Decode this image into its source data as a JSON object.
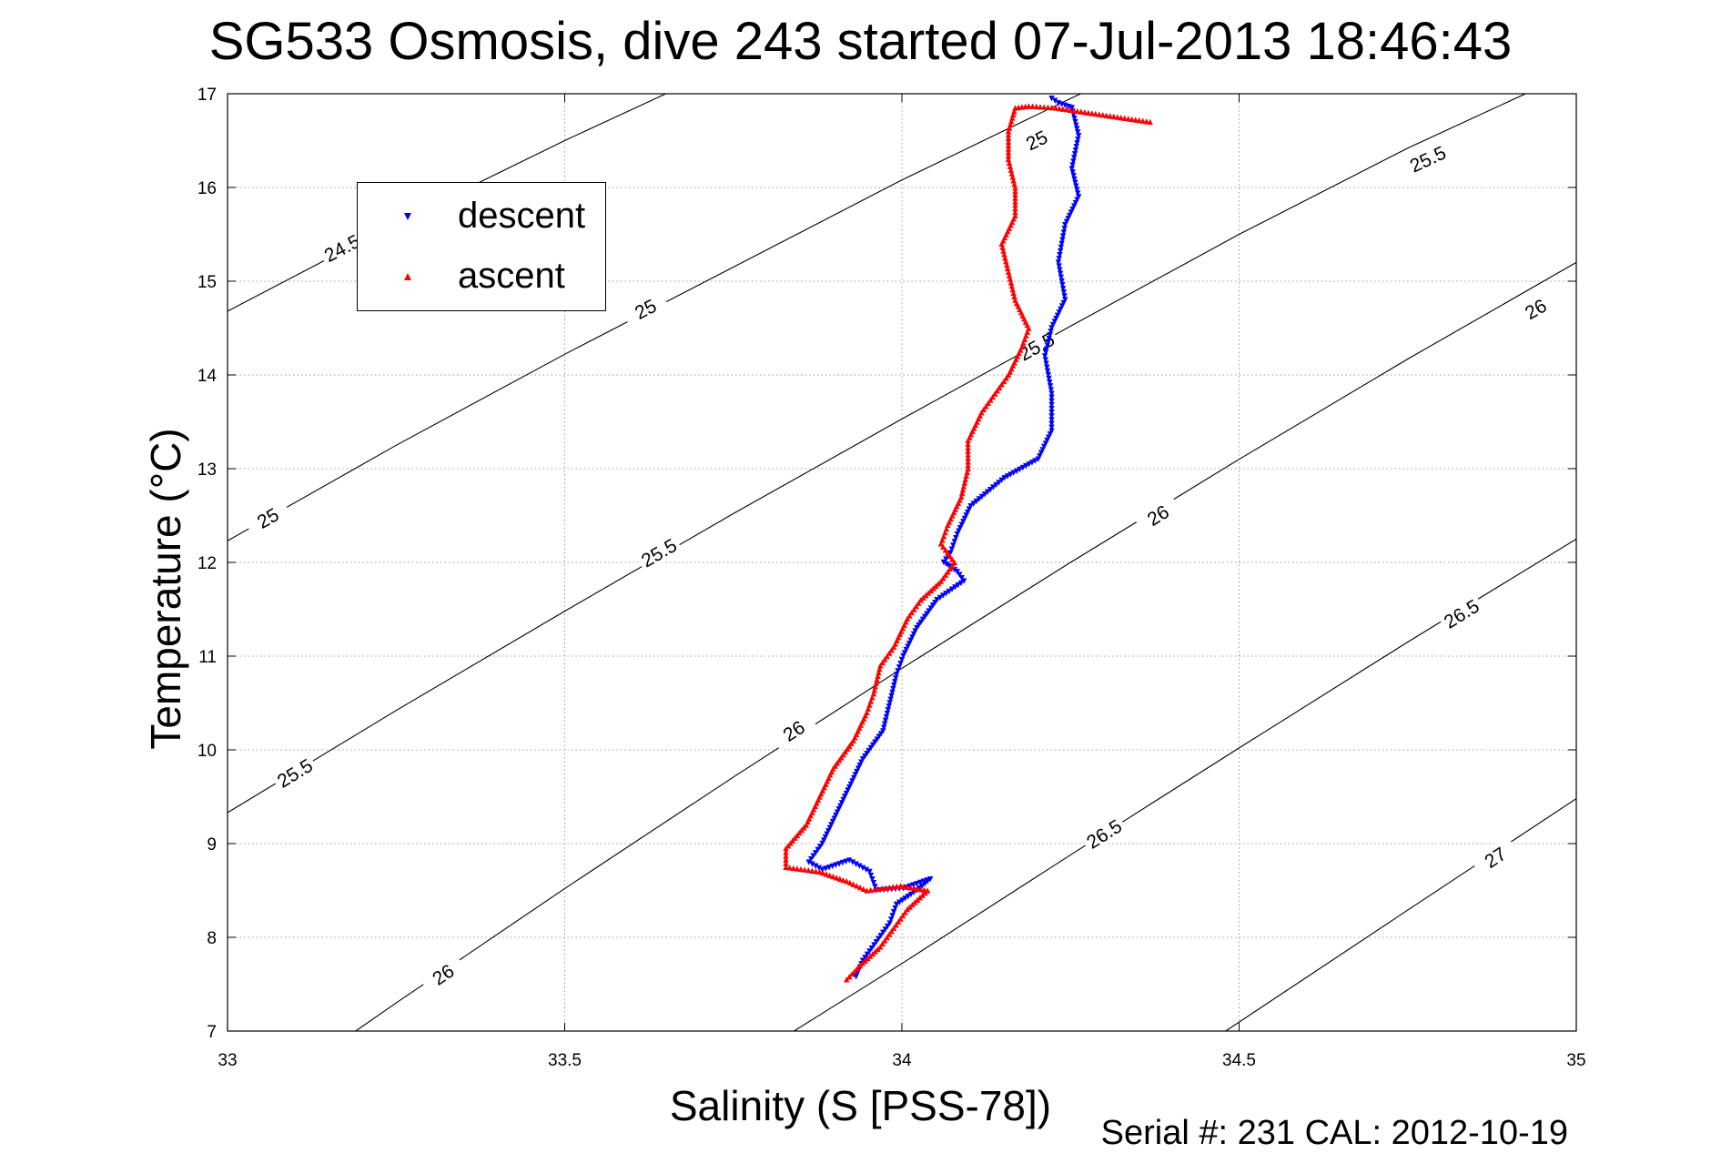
{
  "chart_data": {
    "type": "scatter",
    "title": "SG533 Osmosis, dive 243 started 07-Jul-2013 18:46:43",
    "xlabel": "Salinity (S [PSS-78])",
    "ylabel": "Temperature (°C)",
    "xlim": [
      33,
      35
    ],
    "ylim": [
      7,
      17
    ],
    "xticks": [
      33,
      33.5,
      34,
      34.5,
      35
    ],
    "xtick_labels": [
      "33",
      "33.5",
      "34",
      "34.5",
      "35"
    ],
    "yticks": [
      7,
      8,
      9,
      10,
      11,
      12,
      13,
      14,
      15,
      16,
      17
    ],
    "ytick_labels": [
      "7",
      "8",
      "9",
      "10",
      "11",
      "12",
      "13",
      "14",
      "15",
      "16",
      "17"
    ],
    "grid": true,
    "legend_position": "top-left",
    "series": [
      {
        "name": "descent",
        "color": "#0000ff",
        "marker": "triangle-down",
        "points": [
          [
            34.22,
            16.95
          ],
          [
            34.23,
            16.9
          ],
          [
            34.25,
            16.85
          ],
          [
            34.26,
            16.55
          ],
          [
            34.25,
            16.2
          ],
          [
            34.26,
            15.9
          ],
          [
            34.24,
            15.6
          ],
          [
            34.23,
            15.2
          ],
          [
            34.24,
            14.8
          ],
          [
            34.22,
            14.5
          ],
          [
            34.21,
            14.2
          ],
          [
            34.22,
            13.8
          ],
          [
            34.22,
            13.4
          ],
          [
            34.2,
            13.1
          ],
          [
            34.15,
            12.9
          ],
          [
            34.1,
            12.6
          ],
          [
            34.08,
            12.3
          ],
          [
            34.07,
            12.1
          ],
          [
            34.06,
            12.0
          ],
          [
            34.08,
            11.9
          ],
          [
            34.09,
            11.8
          ],
          [
            34.05,
            11.6
          ],
          [
            34.02,
            11.3
          ],
          [
            34.0,
            11.0
          ],
          [
            33.99,
            10.8
          ],
          [
            33.98,
            10.5
          ],
          [
            33.97,
            10.2
          ],
          [
            33.94,
            9.9
          ],
          [
            33.92,
            9.6
          ],
          [
            33.9,
            9.3
          ],
          [
            33.88,
            9.0
          ],
          [
            33.86,
            8.8
          ],
          [
            33.88,
            8.72
          ],
          [
            33.92,
            8.82
          ],
          [
            33.95,
            8.7
          ],
          [
            33.96,
            8.5
          ],
          [
            34.0,
            8.52
          ],
          [
            34.04,
            8.62
          ],
          [
            34.02,
            8.5
          ],
          [
            33.99,
            8.35
          ],
          [
            33.98,
            8.15
          ],
          [
            33.96,
            7.95
          ],
          [
            33.94,
            7.75
          ],
          [
            33.93,
            7.58
          ]
        ]
      },
      {
        "name": "ascent",
        "color": "#ff0000",
        "marker": "triangle-up",
        "points": [
          [
            34.37,
            16.7
          ],
          [
            34.23,
            16.85
          ],
          [
            34.19,
            16.87
          ],
          [
            34.17,
            16.85
          ],
          [
            34.16,
            16.6
          ],
          [
            34.16,
            16.3
          ],
          [
            34.17,
            16.0
          ],
          [
            34.17,
            15.7
          ],
          [
            34.15,
            15.4
          ],
          [
            34.16,
            15.1
          ],
          [
            34.17,
            14.8
          ],
          [
            34.19,
            14.5
          ],
          [
            34.18,
            14.3
          ],
          [
            34.16,
            14.0
          ],
          [
            34.14,
            13.8
          ],
          [
            34.12,
            13.6
          ],
          [
            34.1,
            13.3
          ],
          [
            34.1,
            13.0
          ],
          [
            34.09,
            12.7
          ],
          [
            34.07,
            12.4
          ],
          [
            34.06,
            12.2
          ],
          [
            34.08,
            12.0
          ],
          [
            34.06,
            11.8
          ],
          [
            34.03,
            11.6
          ],
          [
            34.01,
            11.4
          ],
          [
            33.99,
            11.1
          ],
          [
            33.97,
            10.9
          ],
          [
            33.96,
            10.6
          ],
          [
            33.95,
            10.4
          ],
          [
            33.93,
            10.1
          ],
          [
            33.9,
            9.8
          ],
          [
            33.88,
            9.5
          ],
          [
            33.86,
            9.2
          ],
          [
            33.83,
            8.95
          ],
          [
            33.83,
            8.75
          ],
          [
            33.88,
            8.7
          ],
          [
            33.92,
            8.6
          ],
          [
            33.95,
            8.5
          ],
          [
            34.0,
            8.55
          ],
          [
            34.04,
            8.5
          ],
          [
            34.01,
            8.3
          ],
          [
            33.99,
            8.1
          ],
          [
            33.97,
            7.9
          ],
          [
            33.94,
            7.7
          ],
          [
            33.92,
            7.55
          ]
        ]
      }
    ],
    "isopycnals": [
      {
        "label": "24.5",
        "points": [
          [
            33,
            14.68
          ],
          [
            33.25,
            15.62
          ],
          [
            33.5,
            16.5
          ],
          [
            33.68,
            17.1
          ]
        ],
        "label_positions": [
          [
            33.17,
            15.35
          ]
        ]
      },
      {
        "label": "25",
        "points": [
          [
            33,
            12.23
          ],
          [
            33.25,
            13.25
          ],
          [
            33.5,
            14.22
          ],
          [
            33.75,
            15.15
          ],
          [
            34.0,
            16.08
          ],
          [
            34.25,
            16.95
          ],
          [
            34.31,
            17.15
          ]
        ],
        "label_positions": [
          [
            33.06,
            12.47
          ],
          [
            33.62,
            14.7
          ],
          [
            34.2,
            16.5
          ]
        ]
      },
      {
        "label": "25.5",
        "points": [
          [
            33,
            9.33
          ],
          [
            33.25,
            10.42
          ],
          [
            33.5,
            11.48
          ],
          [
            33.75,
            12.52
          ],
          [
            34.0,
            13.53
          ],
          [
            34.25,
            14.52
          ],
          [
            34.5,
            15.5
          ],
          [
            34.75,
            16.42
          ],
          [
            35,
            17.25
          ]
        ],
        "label_positions": [
          [
            33.1,
            9.75
          ],
          [
            33.64,
            12.1
          ],
          [
            34.2,
            14.3
          ],
          [
            34.78,
            16.3
          ]
        ]
      },
      {
        "label": "26",
        "points": [
          [
            33.19,
            7.0
          ],
          [
            33.25,
            7.3
          ],
          [
            33.5,
            8.52
          ],
          [
            33.75,
            9.71
          ],
          [
            34.0,
            10.87
          ],
          [
            34.25,
            12.0
          ],
          [
            34.5,
            13.1
          ],
          [
            34.75,
            14.17
          ],
          [
            35,
            15.2
          ]
        ],
        "label_positions": [
          [
            33.32,
            7.6
          ],
          [
            33.84,
            10.2
          ],
          [
            34.38,
            12.5
          ],
          [
            34.94,
            14.7
          ]
        ]
      },
      {
        "label": "26.5",
        "points": [
          [
            33.84,
            7.0
          ],
          [
            34.0,
            7.72
          ],
          [
            34.25,
            8.88
          ],
          [
            34.5,
            10.02
          ],
          [
            34.75,
            11.15
          ],
          [
            35,
            12.25
          ]
        ],
        "label_positions": [
          [
            34.3,
            9.1
          ],
          [
            34.83,
            11.45
          ]
        ]
      },
      {
        "label": "27",
        "points": [
          [
            34.48,
            7.0
          ],
          [
            34.75,
            8.29
          ],
          [
            35,
            9.48
          ]
        ],
        "label_positions": [
          [
            34.88,
            8.85
          ]
        ]
      }
    ]
  },
  "legend": {
    "entries": [
      {
        "label": "descent",
        "color": "#0000ff"
      },
      {
        "label": "ascent",
        "color": "#ff0000"
      }
    ]
  },
  "footer": "Serial #: 231  CAL: 2012-10-19"
}
